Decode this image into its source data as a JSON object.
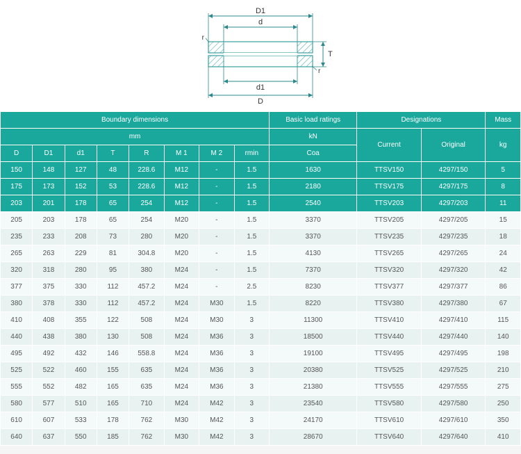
{
  "diagram": {
    "labels": {
      "D1": "D1",
      "d": "d",
      "r": "r",
      "d1": "d1",
      "D": "D",
      "T": "T"
    },
    "stroke": "#3aa0a0",
    "hatch": "#3aa0a0",
    "witness": "#2a8888"
  },
  "headers": {
    "group": {
      "boundary": "Boundary dimensions",
      "load": "Basic load ratings",
      "des": "Designations",
      "mass": "Mass"
    },
    "unit": {
      "mm": "mm",
      "kn": "kN",
      "current": "Current",
      "original": "Original",
      "kg": "kg"
    },
    "cols": {
      "D": "D",
      "D1": "D1",
      "d1": "d1",
      "T": "T",
      "R": "R",
      "M1": "M 1",
      "M2": "M 2",
      "rmin": "rmin",
      "coa": "Coa"
    }
  },
  "rows": [
    {
      "hl": true,
      "D": "150",
      "D1": "148",
      "d1": "127",
      "T": "48",
      "R": "228.6",
      "M1": "M12",
      "M2": "-",
      "rmin": "1.5",
      "coa": "1630",
      "cur": "TTSV150",
      "orig": "4297/150",
      "kg": "5"
    },
    {
      "hl": true,
      "D": "175",
      "D1": "173",
      "d1": "152",
      "T": "53",
      "R": "228.6",
      "M1": "M12",
      "M2": "-",
      "rmin": "1.5",
      "coa": "2180",
      "cur": "TTSV175",
      "orig": "4297/175",
      "kg": "8"
    },
    {
      "hl": true,
      "D": "203",
      "D1": "201",
      "d1": "178",
      "T": "65",
      "R": "254",
      "M1": "M12",
      "M2": "-",
      "rmin": "1.5",
      "coa": "2540",
      "cur": "TTSV203",
      "orig": "4297/203",
      "kg": "11"
    },
    {
      "hl": false,
      "D": "205",
      "D1": "203",
      "d1": "178",
      "T": "65",
      "R": "254",
      "M1": "M20",
      "M2": "-",
      "rmin": "1.5",
      "coa": "3370",
      "cur": "TTSV205",
      "orig": "4297/205",
      "kg": "15"
    },
    {
      "hl": false,
      "D": "235",
      "D1": "233",
      "d1": "208",
      "T": "73",
      "R": "280",
      "M1": "M20",
      "M2": "-",
      "rmin": "1.5",
      "coa": "3370",
      "cur": "TTSV235",
      "orig": "4297/235",
      "kg": "18"
    },
    {
      "hl": false,
      "D": "265",
      "D1": "263",
      "d1": "229",
      "T": "81",
      "R": "304.8",
      "M1": "M20",
      "M2": "-",
      "rmin": "1.5",
      "coa": "4130",
      "cur": "TTSV265",
      "orig": "4297/265",
      "kg": "24"
    },
    {
      "hl": false,
      "D": "320",
      "D1": "318",
      "d1": "280",
      "T": "95",
      "R": "380",
      "M1": "M24",
      "M2": "-",
      "rmin": "1.5",
      "coa": "7370",
      "cur": "TTSV320",
      "orig": "4297/320",
      "kg": "42"
    },
    {
      "hl": false,
      "D": "377",
      "D1": "375",
      "d1": "330",
      "T": "112",
      "R": "457.2",
      "M1": "M24",
      "M2": "-",
      "rmin": "2.5",
      "coa": "8230",
      "cur": "TTSV377",
      "orig": "4297/377",
      "kg": "86"
    },
    {
      "hl": false,
      "D": "380",
      "D1": "378",
      "d1": "330",
      "T": "112",
      "R": "457.2",
      "M1": "M24",
      "M2": "M30",
      "rmin": "1.5",
      "coa": "8220",
      "cur": "TTSV380",
      "orig": "4297/380",
      "kg": "67"
    },
    {
      "hl": false,
      "D": "410",
      "D1": "408",
      "d1": "355",
      "T": "122",
      "R": "508",
      "M1": "M24",
      "M2": "M30",
      "rmin": "3",
      "coa": "11300",
      "cur": "TTSV410",
      "orig": "4297/410",
      "kg": "115"
    },
    {
      "hl": false,
      "D": "440",
      "D1": "438",
      "d1": "380",
      "T": "130",
      "R": "508",
      "M1": "M24",
      "M2": "M36",
      "rmin": "3",
      "coa": "18500",
      "cur": "TTSV440",
      "orig": "4297/440",
      "kg": "140"
    },
    {
      "hl": false,
      "D": "495",
      "D1": "492",
      "d1": "432",
      "T": "146",
      "R": "558.8",
      "M1": "M24",
      "M2": "M36",
      "rmin": "3",
      "coa": "19100",
      "cur": "TTSV495",
      "orig": "4297/495",
      "kg": "198"
    },
    {
      "hl": false,
      "D": "525",
      "D1": "522",
      "d1": "460",
      "T": "155",
      "R": "635",
      "M1": "M24",
      "M2": "M36",
      "rmin": "3",
      "coa": "20380",
      "cur": "TTSV525",
      "orig": "4297/525",
      "kg": "210"
    },
    {
      "hl": false,
      "D": "555",
      "D1": "552",
      "d1": "482",
      "T": "165",
      "R": "635",
      "M1": "M24",
      "M2": "M36",
      "rmin": "3",
      "coa": "21380",
      "cur": "TTSV555",
      "orig": "4297/555",
      "kg": "275"
    },
    {
      "hl": false,
      "D": "580",
      "D1": "577",
      "d1": "510",
      "T": "165",
      "R": "710",
      "M1": "M24",
      "M2": "M42",
      "rmin": "3",
      "coa": "23540",
      "cur": "TTSV580",
      "orig": "4297/580",
      "kg": "250"
    },
    {
      "hl": false,
      "D": "610",
      "D1": "607",
      "d1": "533",
      "T": "178",
      "R": "762",
      "M1": "M30",
      "M2": "M42",
      "rmin": "3",
      "coa": "24170",
      "cur": "TTSV610",
      "orig": "4297/610",
      "kg": "350"
    },
    {
      "hl": false,
      "D": "640",
      "D1": "637",
      "d1": "550",
      "T": "185",
      "R": "762",
      "M1": "M30",
      "M2": "M42",
      "rmin": "3",
      "coa": "28670",
      "cur": "TTSV640",
      "orig": "4297/640",
      "kg": "410"
    }
  ]
}
